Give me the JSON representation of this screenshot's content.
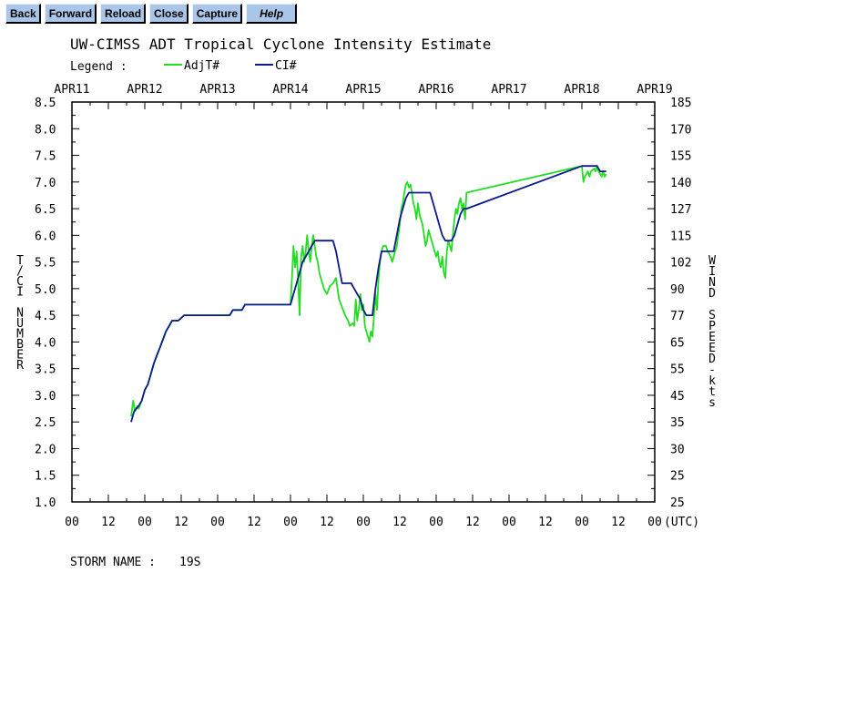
{
  "toolbar": {
    "buttons": [
      {
        "id": "back",
        "label": "Back"
      },
      {
        "id": "forward",
        "label": "Forward"
      },
      {
        "id": "reload",
        "label": "Reload"
      },
      {
        "id": "close",
        "label": "Close"
      },
      {
        "id": "capture",
        "label": "Capture"
      },
      {
        "id": "help",
        "label": "Help"
      }
    ],
    "button_color": "#a9c5e8"
  },
  "chart_data": {
    "type": "line",
    "title": "UW-CIMSS ADT Tropical Cyclone Intensity Estimate",
    "legend_label": "Legend :",
    "legend_placement": "top-left",
    "grid": false,
    "ylabel_left": "T/CI NUMBER",
    "ylabel_right": "WIND SPEED-kts",
    "x_unit_label": "(UTC)",
    "ylim": [
      1.0,
      8.5
    ],
    "xlim": [
      0,
      192
    ],
    "date_ticks": [
      "APR11",
      "APR12",
      "APR13",
      "APR14",
      "APR15",
      "APR16",
      "APR17",
      "APR18",
      "APR19"
    ],
    "hour_ticks": [
      "00",
      "12",
      "00",
      "12",
      "00",
      "12",
      "00",
      "12",
      "00",
      "12",
      "00",
      "12",
      "00",
      "12",
      "00",
      "12",
      "00"
    ],
    "y_ticks_left": [
      "8.5",
      "8.0",
      "7.5",
      "7.0",
      "6.5",
      "6.0",
      "5.5",
      "5.0",
      "4.5",
      "4.0",
      "3.5",
      "3.0",
      "2.5",
      "2.0",
      "1.5",
      "1.0"
    ],
    "y_ticks_right": [
      "185",
      "170",
      "155",
      "140",
      "127",
      "115",
      "102",
      "90",
      "77",
      "65",
      "55",
      "45",
      "35",
      "30",
      "25",
      "25"
    ],
    "storm_label": "STORM NAME :",
    "storm_name": "19S",
    "series": [
      {
        "name": "AdjT#",
        "color": "#22dd22",
        "points": [
          [
            19.5,
            2.6
          ],
          [
            20.2,
            2.9
          ],
          [
            20.8,
            2.7
          ],
          [
            21.5,
            2.8
          ],
          [
            22,
            2.75
          ],
          [
            23,
            2.9
          ],
          [
            24,
            3.1
          ],
          [
            25,
            3.2
          ],
          [
            26,
            3.4
          ],
          [
            27,
            3.6
          ],
          [
            28,
            3.75
          ],
          [
            29,
            3.9
          ],
          [
            30,
            4.05
          ],
          [
            31,
            4.2
          ],
          [
            32,
            4.3
          ],
          [
            33,
            4.4
          ],
          [
            35,
            4.4
          ],
          [
            37,
            4.5
          ],
          [
            42,
            4.5
          ],
          [
            48,
            4.5
          ],
          [
            52,
            4.5
          ],
          [
            53,
            4.6
          ],
          [
            56,
            4.6
          ],
          [
            57,
            4.7
          ],
          [
            62,
            4.7
          ],
          [
            68,
            4.7
          ],
          [
            72,
            4.7
          ],
          [
            72.4,
            5.1
          ],
          [
            73,
            5.8
          ],
          [
            73.5,
            5.4
          ],
          [
            74,
            5.7
          ],
          [
            74.5,
            5.2
          ],
          [
            75,
            4.5
          ],
          [
            75.5,
            5.6
          ],
          [
            76,
            5.8
          ],
          [
            76.5,
            5.5
          ],
          [
            77,
            5.7
          ],
          [
            77.5,
            6.0
          ],
          [
            78,
            5.7
          ],
          [
            78.5,
            5.5
          ],
          [
            79,
            5.8
          ],
          [
            79.5,
            6.0
          ],
          [
            80,
            5.8
          ],
          [
            80.5,
            5.6
          ],
          [
            81,
            5.5
          ],
          [
            81.5,
            5.3
          ],
          [
            82,
            5.2
          ],
          [
            83,
            5.0
          ],
          [
            84,
            4.9
          ],
          [
            85,
            5.05
          ],
          [
            86,
            5.1
          ],
          [
            87,
            5.2
          ],
          [
            87.5,
            5.0
          ],
          [
            88,
            4.8
          ],
          [
            89,
            4.65
          ],
          [
            90,
            4.5
          ],
          [
            91,
            4.4
          ],
          [
            91.5,
            4.3
          ],
          [
            92.5,
            4.35
          ],
          [
            93,
            4.3
          ],
          [
            93.5,
            4.8
          ],
          [
            94,
            4.4
          ],
          [
            94.5,
            4.6
          ],
          [
            95,
            4.9
          ],
          [
            95.5,
            4.6
          ],
          [
            96,
            4.7
          ],
          [
            96.5,
            4.3
          ],
          [
            97,
            4.2
          ],
          [
            97.5,
            4.1
          ],
          [
            98,
            4.0
          ],
          [
            98.5,
            4.2
          ],
          [
            99,
            4.1
          ],
          [
            99.5,
            4.5
          ],
          [
            100,
            4.9
          ],
          [
            100.5,
            4.6
          ],
          [
            101,
            5.2
          ],
          [
            101.5,
            5.5
          ],
          [
            102,
            5.7
          ],
          [
            102.5,
            5.8
          ],
          [
            103.5,
            5.8
          ],
          [
            104,
            5.7
          ],
          [
            105,
            5.6
          ],
          [
            105.5,
            5.5
          ],
          [
            106,
            5.6
          ],
          [
            106.5,
            5.7
          ],
          [
            107,
            5.8
          ],
          [
            107.5,
            6.0
          ],
          [
            108,
            6.2
          ],
          [
            108.5,
            6.5
          ],
          [
            109,
            6.6
          ],
          [
            109.5,
            6.8
          ],
          [
            110,
            6.95
          ],
          [
            110.5,
            7.0
          ],
          [
            111,
            6.9
          ],
          [
            111.5,
            6.95
          ],
          [
            112,
            6.8
          ],
          [
            112.5,
            6.6
          ],
          [
            113,
            6.5
          ],
          [
            113.5,
            6.3
          ],
          [
            114,
            6.6
          ],
          [
            114.5,
            6.4
          ],
          [
            115,
            6.3
          ],
          [
            115.5,
            6.2
          ],
          [
            116,
            6.0
          ],
          [
            116.5,
            5.8
          ],
          [
            117,
            5.9
          ],
          [
            117.5,
            6.1
          ],
          [
            118,
            6.0
          ],
          [
            118.5,
            5.9
          ],
          [
            119,
            5.8
          ],
          [
            119.5,
            5.7
          ],
          [
            120,
            5.6
          ],
          [
            120.5,
            5.7
          ],
          [
            121,
            5.5
          ],
          [
            121.5,
            5.4
          ],
          [
            122,
            5.6
          ],
          [
            122.5,
            5.3
          ],
          [
            123,
            5.2
          ],
          [
            123.5,
            5.7
          ],
          [
            124,
            5.9
          ],
          [
            124.5,
            5.8
          ],
          [
            125,
            5.7
          ],
          [
            125.5,
            6.0
          ],
          [
            126,
            6.3
          ],
          [
            126.5,
            6.5
          ],
          [
            127,
            6.4
          ],
          [
            127.5,
            6.6
          ],
          [
            128,
            6.7
          ],
          [
            128.5,
            6.5
          ],
          [
            129,
            6.6
          ],
          [
            129.5,
            6.3
          ],
          [
            130,
            6.8
          ],
          [
            168,
            7.3
          ],
          [
            168.5,
            7.0
          ],
          [
            169,
            7.1
          ],
          [
            170,
            7.2
          ],
          [
            170.5,
            7.1
          ],
          [
            171,
            7.2
          ],
          [
            172,
            7.25
          ],
          [
            172.5,
            7.2
          ],
          [
            173,
            7.3
          ],
          [
            173.5,
            7.2
          ],
          [
            174,
            7.15
          ],
          [
            174.5,
            7.1
          ],
          [
            175,
            7.2
          ],
          [
            175.5,
            7.1
          ],
          [
            176,
            7.15
          ]
        ]
      },
      {
        "name": "CI#",
        "color": "#0b1a8f",
        "points": [
          [
            19.5,
            2.5
          ],
          [
            20.5,
            2.7
          ],
          [
            22,
            2.8
          ],
          [
            23,
            2.9
          ],
          [
            24,
            3.1
          ],
          [
            25,
            3.2
          ],
          [
            26,
            3.4
          ],
          [
            27,
            3.6
          ],
          [
            28,
            3.75
          ],
          [
            29,
            3.9
          ],
          [
            30,
            4.05
          ],
          [
            31,
            4.2
          ],
          [
            32,
            4.3
          ],
          [
            33,
            4.4
          ],
          [
            35,
            4.4
          ],
          [
            37,
            4.5
          ],
          [
            48,
            4.5
          ],
          [
            52,
            4.5
          ],
          [
            53,
            4.6
          ],
          [
            56,
            4.6
          ],
          [
            57,
            4.7
          ],
          [
            72,
            4.7
          ],
          [
            73,
            4.9
          ],
          [
            74,
            5.1
          ],
          [
            75,
            5.3
          ],
          [
            76,
            5.5
          ],
          [
            77,
            5.6
          ],
          [
            78,
            5.7
          ],
          [
            79,
            5.8
          ],
          [
            80,
            5.9
          ],
          [
            86,
            5.9
          ],
          [
            87,
            5.7
          ],
          [
            88,
            5.4
          ],
          [
            89,
            5.1
          ],
          [
            92,
            5.1
          ],
          [
            93,
            5.0
          ],
          [
            94,
            4.9
          ],
          [
            95,
            4.8
          ],
          [
            96,
            4.6
          ],
          [
            97,
            4.5
          ],
          [
            99,
            4.5
          ],
          [
            100,
            5.0
          ],
          [
            101,
            5.4
          ],
          [
            102,
            5.7
          ],
          [
            106,
            5.7
          ],
          [
            107,
            6.0
          ],
          [
            108,
            6.3
          ],
          [
            109,
            6.5
          ],
          [
            110,
            6.7
          ],
          [
            111,
            6.8
          ],
          [
            118,
            6.8
          ],
          [
            119,
            6.6
          ],
          [
            120,
            6.4
          ],
          [
            121,
            6.2
          ],
          [
            122,
            6.0
          ],
          [
            123,
            5.9
          ],
          [
            125,
            5.9
          ],
          [
            126,
            6.0
          ],
          [
            127,
            6.2
          ],
          [
            128,
            6.4
          ],
          [
            129,
            6.5
          ],
          [
            130,
            6.5
          ],
          [
            168,
            7.3
          ],
          [
            173,
            7.3
          ],
          [
            174,
            7.2
          ],
          [
            176,
            7.2
          ]
        ]
      }
    ]
  }
}
